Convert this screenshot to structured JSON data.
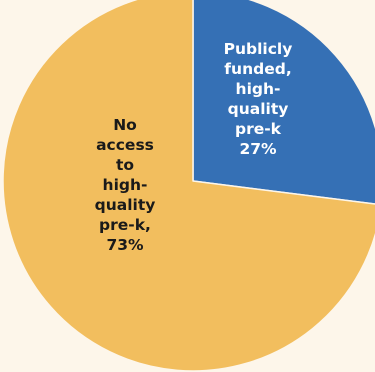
{
  "chart_data": {
    "type": "pie",
    "categories": [
      "Publicly funded, high-quality pre-k",
      "No access to high-quality pre-k"
    ],
    "values": [
      27,
      73
    ],
    "colors": [
      "#3570B5",
      "#F2BE5E"
    ],
    "background": "#FDF6EA",
    "slice_border": "#FDF6EA",
    "label_colors": [
      "#FFFFFF",
      "#1A1A1A"
    ],
    "labels": [
      {
        "lines": [
          "Publicly",
          "funded,",
          "high-",
          "quality",
          "pre-k",
          "27%"
        ]
      },
      {
        "lines": [
          "No",
          "access",
          "to",
          "high-",
          "quality",
          "pre-k,",
          "73%"
        ]
      }
    ],
    "start_angle": "12 o'clock",
    "direction": "clockwise",
    "legend": "none"
  }
}
